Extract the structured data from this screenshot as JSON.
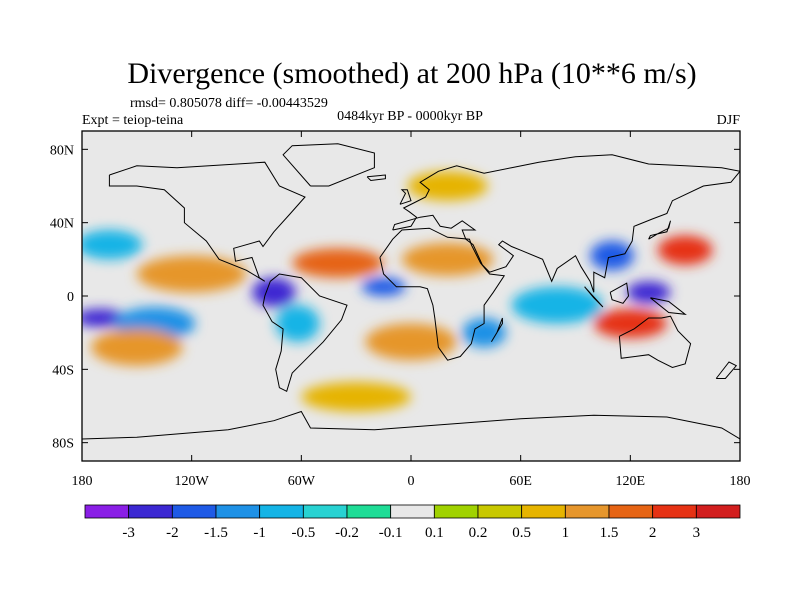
{
  "chart_data": {
    "type": "heatmap",
    "title": "Divergence (smoothed) at 200 hPa (10**6 m/s)",
    "stats_text": "rmsd= 0.805078 diff= -0.00443529",
    "left_subtitle": "Expt = teiop-teina",
    "center_subtitle": "0484kyr BP - 0000kyr BP",
    "right_subtitle": "DJF",
    "x_ticks": [
      "180",
      "120W",
      "60W",
      "0",
      "60E",
      "120E",
      "180"
    ],
    "x_tick_values": [
      -180,
      -120,
      -60,
      0,
      60,
      120,
      180
    ],
    "y_ticks": [
      "80N",
      "40N",
      "0",
      "40S",
      "80S"
    ],
    "y_tick_values": [
      80,
      40,
      0,
      -40,
      -80
    ],
    "xlim": [
      -180,
      180
    ],
    "ylim": [
      -90,
      90
    ],
    "colorbar": {
      "labels": [
        "-3",
        "-2",
        "-1.5",
        "-1",
        "-0.5",
        "-0.2",
        "-0.1",
        "0.1",
        "0.2",
        "0.5",
        "1",
        "1.5",
        "2",
        "3"
      ],
      "levels": [
        -3,
        -2,
        -1.5,
        -1,
        -0.5,
        -0.2,
        -0.1,
        0.1,
        0.2,
        0.5,
        1,
        1.5,
        2,
        3
      ],
      "colors": [
        "#8a1ee6",
        "#3c28d2",
        "#1e5ae6",
        "#1e91e6",
        "#14b4e6",
        "#28d2d2",
        "#1edc96",
        "#e8e8e8",
        "#a0d200",
        "#c8c800",
        "#e6b400",
        "#e6962c",
        "#e66414",
        "#e63214",
        "#d21e1e"
      ]
    },
    "field_blobs": [
      {
        "lon": -170,
        "lat": -12,
        "rx": 14,
        "ry": 5,
        "value": -3
      },
      {
        "lon": -140,
        "lat": -15,
        "rx": 22,
        "ry": 9,
        "value": -1.5
      },
      {
        "lon": -165,
        "lat": 28,
        "rx": 18,
        "ry": 8,
        "value": -1
      },
      {
        "lon": -120,
        "lat": 12,
        "rx": 30,
        "ry": 10,
        "value": 1
      },
      {
        "lon": -150,
        "lat": -28,
        "rx": 25,
        "ry": 10,
        "value": 1
      },
      {
        "lon": -75,
        "lat": 2,
        "rx": 12,
        "ry": 8,
        "value": -3
      },
      {
        "lon": -62,
        "lat": -15,
        "rx": 12,
        "ry": 10,
        "value": -1
      },
      {
        "lon": -40,
        "lat": 18,
        "rx": 25,
        "ry": 8,
        "value": 1.5
      },
      {
        "lon": -15,
        "lat": 5,
        "rx": 12,
        "ry": 5,
        "value": -2
      },
      {
        "lon": 0,
        "lat": -25,
        "rx": 25,
        "ry": 10,
        "value": 1
      },
      {
        "lon": 20,
        "lat": 20,
        "rx": 25,
        "ry": 9,
        "value": 1
      },
      {
        "lon": 40,
        "lat": -20,
        "rx": 12,
        "ry": 8,
        "value": -1.5
      },
      {
        "lon": 80,
        "lat": -5,
        "rx": 25,
        "ry": 10,
        "value": -1
      },
      {
        "lon": 110,
        "lat": 22,
        "rx": 12,
        "ry": 8,
        "value": -2
      },
      {
        "lon": 130,
        "lat": 2,
        "rx": 12,
        "ry": 6,
        "value": -3
      },
      {
        "lon": 120,
        "lat": -15,
        "rx": 20,
        "ry": 8,
        "value": 2
      },
      {
        "lon": 150,
        "lat": 25,
        "rx": 15,
        "ry": 8,
        "value": 2
      },
      {
        "lon": 20,
        "lat": 60,
        "rx": 22,
        "ry": 8,
        "value": 0.5
      },
      {
        "lon": -30,
        "lat": -55,
        "rx": 30,
        "ry": 8,
        "value": 0.5
      }
    ]
  }
}
